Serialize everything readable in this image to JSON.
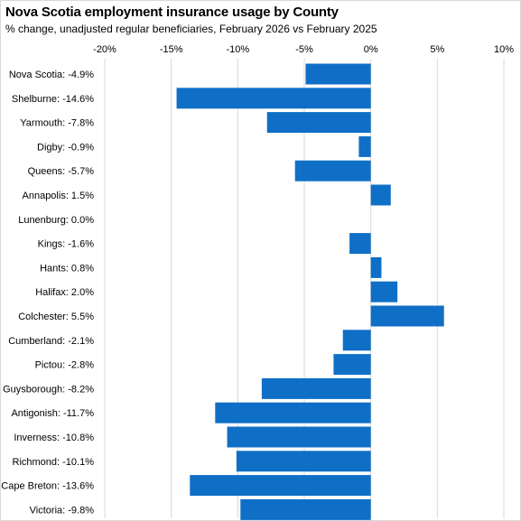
{
  "chart_data": {
    "type": "bar",
    "orientation": "horizontal",
    "title": "Nova Scotia employment insurance usage by County",
    "subtitle": "% change, unadjusted regular beneficiaries, February 2026 vs February 2025",
    "xlim": [
      -20,
      10
    ],
    "xticks": [
      -20,
      -15,
      -10,
      -5,
      0,
      5,
      10
    ],
    "xtick_labels": [
      "-20%",
      "-15%",
      "-10%",
      "-5%",
      "0%",
      "5%",
      "10%"
    ],
    "xaxis_position": "top",
    "grid": true,
    "legend": "none",
    "bar_color": "#0f6fc6",
    "grid_color": "#d9d9d9",
    "categories": [
      "Nova Scotia:  -4.9%",
      "Shelburne:  -14.6%",
      "Yarmouth:  -7.8%",
      "Digby:  -0.9%",
      "Queens:  -5.7%",
      "Annapolis:  1.5%",
      "Lunenburg:  0.0%",
      "Kings:  -1.6%",
      "Hants:  0.8%",
      "Halifax:  2.0%",
      "Colchester:  5.5%",
      "Cumberland:  -2.1%",
      "Pictou:  -2.8%",
      "Guysborough:  -8.2%",
      "Antigonish:  -11.7%",
      "Inverness:  -10.8%",
      "Richmond:  -10.1%",
      "Cape Breton:  -13.6%",
      "Victoria:  -9.8%"
    ],
    "values": [
      -4.9,
      -14.6,
      -7.8,
      -0.9,
      -5.7,
      1.5,
      0.0,
      -1.6,
      0.8,
      2.0,
      5.5,
      -2.1,
      -2.8,
      -8.2,
      -11.7,
      -10.8,
      -10.1,
      -13.6,
      -9.8
    ]
  }
}
